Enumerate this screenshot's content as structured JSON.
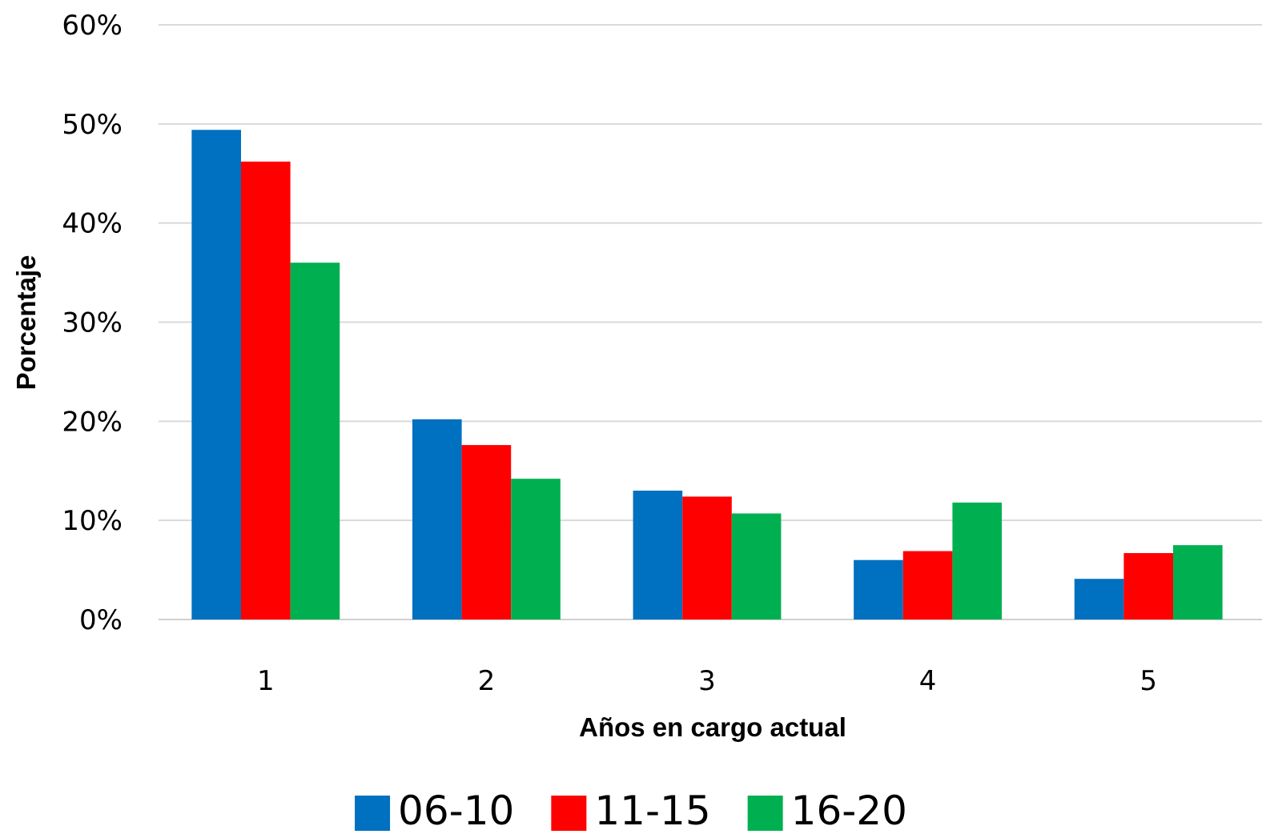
{
  "chart_data": {
    "type": "bar",
    "title": "",
    "xlabel": "Años en cargo actual",
    "ylabel": "Porcentaje",
    "categories": [
      "1",
      "2",
      "3",
      "4",
      "5"
    ],
    "y_ticks": [
      "0%",
      "10%",
      "20%",
      "30%",
      "40%",
      "50%",
      "60%"
    ],
    "ylim": [
      0,
      60
    ],
    "grid": true,
    "legend_position": "bottom",
    "series": [
      {
        "name": "06-10",
        "color": "#0070C0",
        "values": [
          49.4,
          20.2,
          13.0,
          6.0,
          4.1
        ]
      },
      {
        "name": "11-15",
        "color": "#FF0000",
        "values": [
          46.2,
          17.6,
          12.4,
          6.9,
          6.7
        ]
      },
      {
        "name": "16-20",
        "color": "#00B050",
        "values": [
          36.0,
          14.2,
          10.7,
          11.8,
          7.5
        ]
      }
    ]
  }
}
